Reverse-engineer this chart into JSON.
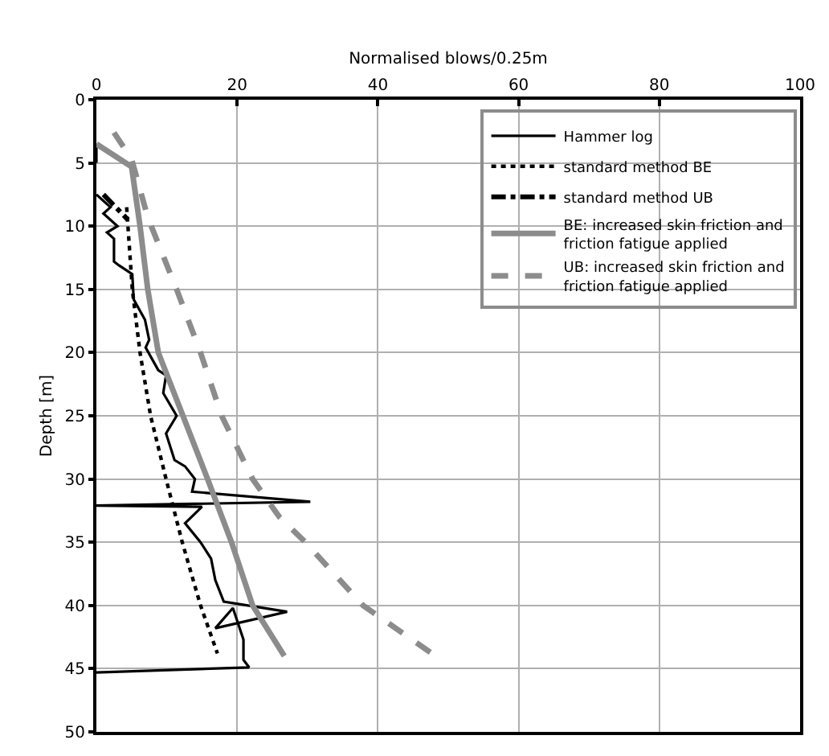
{
  "chart_data": {
    "type": "line",
    "xlabel": "Normalised blows/0.25m",
    "ylabel": "Depth [m]",
    "xlim": [
      0,
      100
    ],
    "xticks": [
      0,
      20,
      40,
      60,
      80,
      100
    ],
    "ylim": [
      50,
      0
    ],
    "yticks": [
      0,
      5,
      10,
      15,
      20,
      25,
      30,
      35,
      40,
      45,
      50
    ],
    "grid": true,
    "legend": "top right",
    "marker": "none",
    "series": [
      {
        "name": "Hammer log",
        "color": "#000000",
        "line_style": "solid",
        "x": [
          0,
          0,
          null,
          0,
          2,
          1,
          3,
          1.5,
          2.5,
          2.5,
          3.2,
          5.1,
          5.3,
          6.9,
          7.5,
          7.0,
          8.8,
          9.9,
          9.5,
          11.4,
          9.9,
          11.1,
          12.6,
          14.0,
          13.6,
          30.4,
          0,
          15.0,
          12.6,
          14.8,
          16.3,
          16.9,
          18.1,
          27.1,
          16.9,
          19.4,
          20.9,
          20.9,
          21.7,
          0
        ],
        "values": [
          3.5,
          5,
          null,
          7.5,
          8.5,
          9,
          10,
          10.5,
          11,
          12.8,
          13.1,
          13.8,
          15.8,
          17.4,
          19.0,
          19.6,
          21.4,
          21.8,
          23.2,
          25.0,
          26.4,
          28.5,
          29.0,
          30.0,
          31.0,
          31.8,
          32.1,
          32.2,
          33.5,
          35.0,
          36.3,
          38.0,
          39.7,
          40.5,
          41.8,
          40.2,
          42.7,
          44.3,
          44.9,
          45.3
        ]
      },
      {
        "name": "standard method BE",
        "color": "#000000",
        "line_style": "dotted",
        "x": [
          4.3,
          5.1,
          6.2,
          7.7,
          9.9,
          12.2,
          14.8,
          17.2
        ],
        "values": [
          8.5,
          15,
          20,
          25,
          30,
          35,
          40,
          43.8
        ]
      },
      {
        "name": "standard method UB",
        "color": "#000000",
        "line_style": "dashdot",
        "x": [
          1,
          4.5
        ],
        "values": [
          7.5,
          9.5
        ]
      },
      {
        "name": "BE: increased skin friction and friction fatigue applied",
        "color": "#8c8c8c",
        "line_style": "solid",
        "x": [
          0,
          5,
          6.2,
          7.3,
          8.8,
          15.8,
          19.2,
          22.2,
          26.7
        ],
        "values": [
          3.5,
          5.3,
          10,
          15,
          20,
          30,
          35,
          40,
          44
        ]
      },
      {
        "name": "UB: increased skin friction and friction fatigue applied",
        "color": "#8c8c8c",
        "line_style": "dashed",
        "x": [
          2.5,
          5,
          7.3,
          11.4,
          14.8,
          17.8,
          22.2,
          26,
          29.7,
          37.9,
          48.2
        ],
        "values": [
          2.6,
          4.7,
          9.3,
          15,
          20,
          25,
          30,
          33,
          35,
          40,
          44
        ]
      }
    ]
  }
}
